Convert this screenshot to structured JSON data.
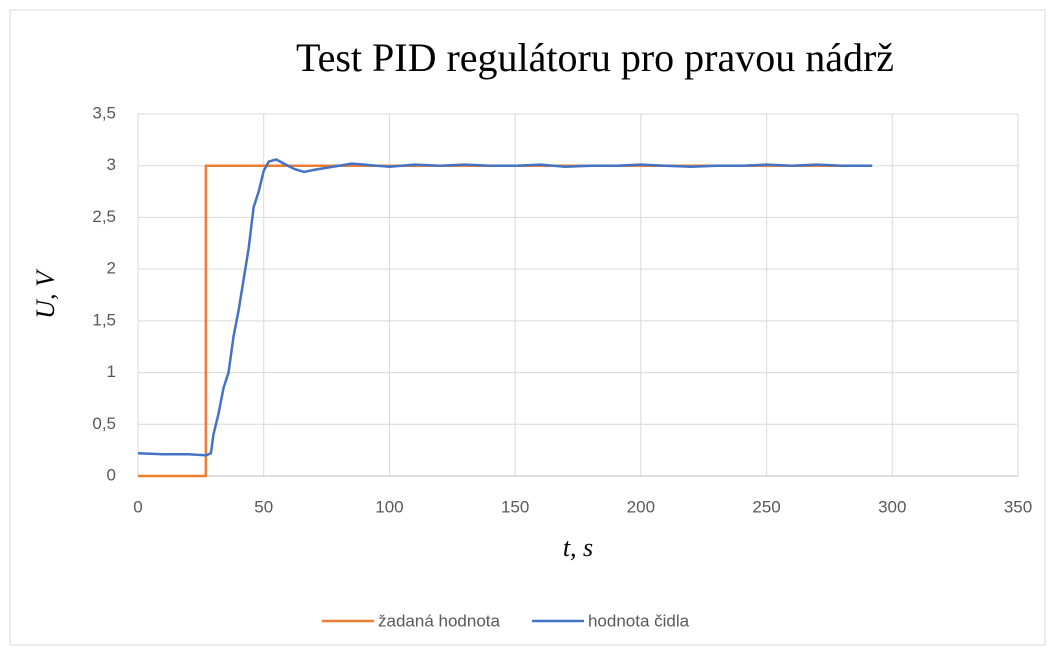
{
  "chart_data": {
    "type": "line",
    "title": "Test PID regulátoru pro pravou nádrž",
    "xlabel": "t, s",
    "ylabel": "U, V",
    "xlim": [
      0,
      350
    ],
    "xticks": [
      0,
      50,
      100,
      150,
      200,
      250,
      300,
      350
    ],
    "ylim": [
      0,
      3.5
    ],
    "yticks": [
      0,
      {
        "value": 0.5,
        "label": "0,5"
      },
      1,
      {
        "value": 1.5,
        "label": "1,5"
      },
      2,
      {
        "value": 2.5,
        "label": "2,5"
      },
      3,
      {
        "value": 3.5,
        "label": "3,5"
      }
    ],
    "grid": true,
    "legend": "bottom",
    "series": [
      {
        "name": "žadaná hodnota",
        "color": "#ed7d31",
        "x": [
          0,
          27,
          27,
          292
        ],
        "values": [
          0,
          0,
          3,
          3
        ]
      },
      {
        "name": "hodnota čidla",
        "color": "#4472c4",
        "x": [
          0,
          10,
          20,
          27,
          29,
          30,
          32,
          34,
          36,
          38,
          40,
          42,
          44,
          46,
          48,
          50,
          52,
          55,
          58,
          62,
          66,
          70,
          75,
          80,
          85,
          90,
          95,
          100,
          110,
          120,
          130,
          140,
          150,
          160,
          170,
          180,
          190,
          200,
          210,
          220,
          230,
          240,
          250,
          260,
          270,
          280,
          292
        ],
        "values": [
          0.22,
          0.21,
          0.21,
          0.2,
          0.22,
          0.4,
          0.6,
          0.85,
          1.0,
          1.35,
          1.6,
          1.9,
          2.2,
          2.6,
          2.75,
          2.95,
          3.04,
          3.06,
          3.02,
          2.97,
          2.94,
          2.96,
          2.98,
          3.0,
          3.02,
          3.01,
          3.0,
          2.99,
          3.01,
          3.0,
          3.01,
          3.0,
          3.0,
          3.01,
          2.99,
          3.0,
          3.0,
          3.01,
          3.0,
          2.99,
          3.0,
          3.0,
          3.01,
          3.0,
          3.01,
          3.0,
          3.0
        ]
      }
    ]
  }
}
